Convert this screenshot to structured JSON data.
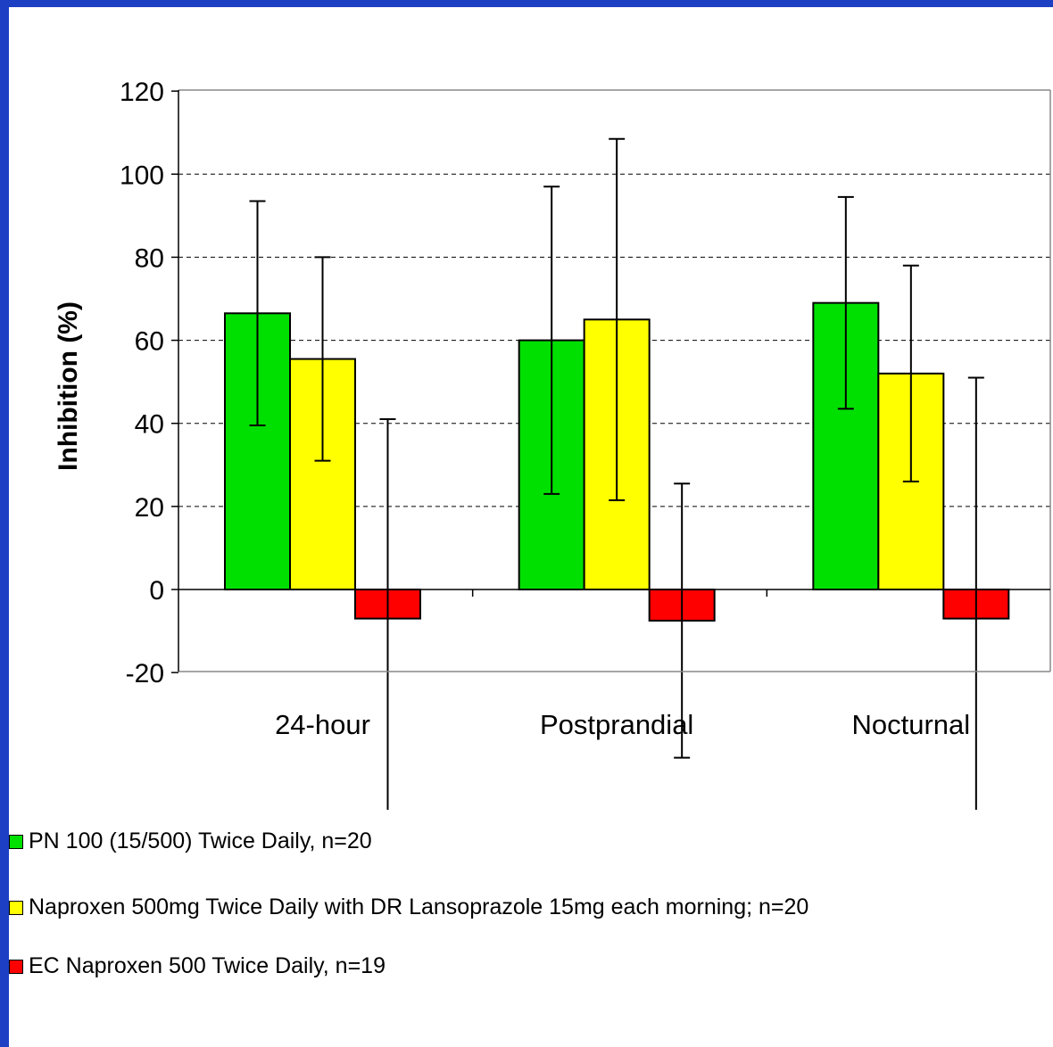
{
  "chart_data": {
    "type": "bar",
    "title": "",
    "xlabel": "",
    "ylabel": "Inhibition (%)",
    "ylim": [
      -20,
      120
    ],
    "yticks": [
      -20,
      0,
      20,
      40,
      60,
      80,
      100,
      120
    ],
    "grid": "horizontal dashed",
    "legend_position": "bottom-left",
    "categories": [
      "24-hour",
      "Postprandial",
      "Nocturnal"
    ],
    "series": [
      {
        "name": "PN 100 (15/500) Twice Daily, n=20",
        "color": "#00e000",
        "values": [
          66.5,
          60,
          69
        ],
        "error": [
          27,
          37,
          25.5
        ]
      },
      {
        "name": "Naproxen 500mg Twice Daily with DR Lansoprazole 15mg each morning; n=20",
        "color": "#ffff00",
        "values": [
          55.5,
          65,
          52
        ],
        "error": [
          24.5,
          43.5,
          26
        ]
      },
      {
        "name": "EC Naproxen 500 Twice Daily, n=19",
        "color": "#ff0000",
        "values": [
          -7,
          -7.5,
          -7
        ],
        "error": [
          48,
          33,
          58
        ]
      }
    ]
  }
}
